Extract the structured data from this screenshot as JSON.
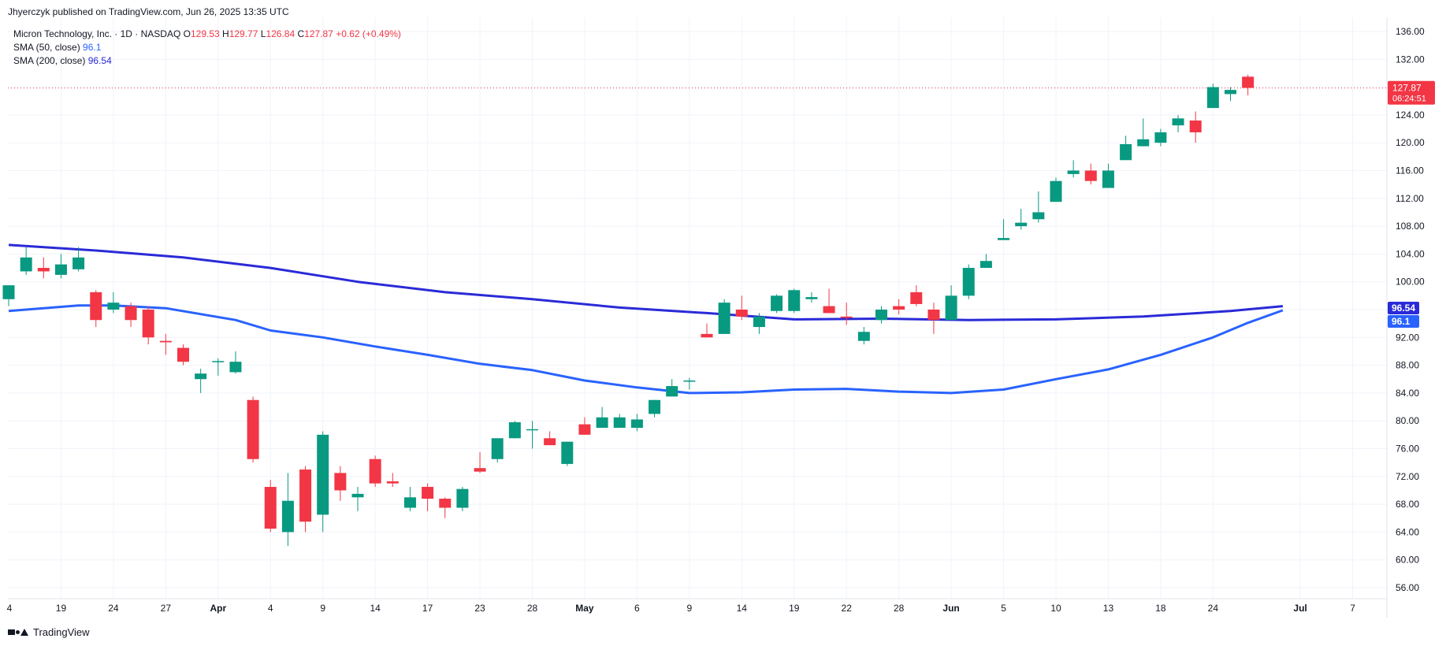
{
  "header": {
    "publisher": "Jhyerczyk published on TradingView.com, Jun 26, 2025 13:35 UTC"
  },
  "legend": {
    "symbol": "Micron Technology, Inc. · 1D · NASDAQ",
    "open_label": "O",
    "open": "129.53",
    "high_label": "H",
    "high": "129.77",
    "low_label": "L",
    "low": "126.84",
    "close_label": "C",
    "close": "127.87",
    "change": "+0.62 (+0.49%)",
    "sma50_label": "SMA (50, close)",
    "sma50_value": "96.1",
    "sma200_label": "SMA (200, close)",
    "sma200_value": "96.54"
  },
  "price_tag": {
    "price": "127.87",
    "countdown": "06:24:51"
  },
  "footer": {
    "brand": "TradingView"
  },
  "colors": {
    "up": "#089981",
    "down": "#f23645",
    "sma50": "#2962ff",
    "sma200": "#2a2ad8",
    "grid": "#f0f3fa"
  },
  "chart_data": {
    "type": "candlestick",
    "yticks": [
      56,
      60,
      64,
      68,
      72,
      76,
      80,
      84,
      88,
      92,
      96,
      100,
      104,
      108,
      112,
      116,
      120,
      124,
      128,
      132,
      136
    ],
    "ylim": [
      54,
      138
    ],
    "xlabels": [
      {
        "i": -7,
        "label": "4"
      },
      {
        "i": 3,
        "label": "19"
      },
      {
        "i": 6,
        "label": "24"
      },
      {
        "i": 9,
        "label": "27"
      },
      {
        "i": 12,
        "label": "Apr"
      },
      {
        "i": 15,
        "label": "4"
      },
      {
        "i": 18,
        "label": "9"
      },
      {
        "i": 21,
        "label": "14"
      },
      {
        "i": 24,
        "label": "17"
      },
      {
        "i": 27,
        "label": "23"
      },
      {
        "i": 30,
        "label": "28"
      },
      {
        "i": 33,
        "label": "May"
      },
      {
        "i": 36,
        "label": "6"
      },
      {
        "i": 39,
        "label": "9"
      },
      {
        "i": 42,
        "label": "14"
      },
      {
        "i": 45,
        "label": "19"
      },
      {
        "i": 48,
        "label": "22"
      },
      {
        "i": 51,
        "label": "28"
      },
      {
        "i": 54,
        "label": "Jun"
      },
      {
        "i": 57,
        "label": "5"
      },
      {
        "i": 60,
        "label": "10"
      },
      {
        "i": 63,
        "label": "13"
      },
      {
        "i": 66,
        "label": "18"
      },
      {
        "i": 69,
        "label": "24"
      },
      {
        "i": 74,
        "label": "Jul"
      },
      {
        "i": 77,
        "label": "7"
      }
    ],
    "candles": [
      [
        97.5,
        99.5,
        96.5,
        99.5
      ],
      [
        101.5,
        105.0,
        101.0,
        103.5
      ],
      [
        102.0,
        103.5,
        100.5,
        101.5
      ],
      [
        101.0,
        104.0,
        100.5,
        102.5
      ],
      [
        101.8,
        105.0,
        101.5,
        103.5
      ],
      [
        98.5,
        98.8,
        93.5,
        94.5
      ],
      [
        96.0,
        98.5,
        95.5,
        97.0
      ],
      [
        96.5,
        97.0,
        93.5,
        94.5
      ],
      [
        96.0,
        96.5,
        91.0,
        92.0
      ],
      [
        91.5,
        92.5,
        89.5,
        91.3
      ],
      [
        90.5,
        91.0,
        88.0,
        88.5
      ],
      [
        86.0,
        87.5,
        84.0,
        86.8
      ],
      [
        88.5,
        89.0,
        86.5,
        88.6
      ],
      [
        87.0,
        90.0,
        86.8,
        88.5
      ],
      [
        83.0,
        83.5,
        74.0,
        74.5
      ],
      [
        70.5,
        71.5,
        64.0,
        64.5
      ],
      [
        64.0,
        72.5,
        62.0,
        68.5
      ],
      [
        73.0,
        73.5,
        64.0,
        65.5
      ],
      [
        66.5,
        78.5,
        64.0,
        78.0
      ],
      [
        72.5,
        73.5,
        68.5,
        70.0
      ],
      [
        69.0,
        70.5,
        67.0,
        69.5
      ],
      [
        74.5,
        75.0,
        70.5,
        71.0
      ],
      [
        71.3,
        72.5,
        70.5,
        71.0
      ],
      [
        67.5,
        70.5,
        67.0,
        69.0
      ],
      [
        70.5,
        71.0,
        67.0,
        68.8
      ],
      [
        68.8,
        69.0,
        66.0,
        67.5
      ],
      [
        67.5,
        70.5,
        67.0,
        70.2
      ],
      [
        73.2,
        75.5,
        72.5,
        72.7
      ],
      [
        74.5,
        77.5,
        74.0,
        77.5
      ],
      [
        77.5,
        80.0,
        77.5,
        79.8
      ],
      [
        78.8,
        80.0,
        76.0,
        78.8
      ],
      [
        77.5,
        78.5,
        76.5,
        76.5
      ],
      [
        73.8,
        77.0,
        73.5,
        77.0
      ],
      [
        79.5,
        80.5,
        78.0,
        78.0
      ],
      [
        79.0,
        82.0,
        79.0,
        80.5
      ],
      [
        79.0,
        81.0,
        79.0,
        80.5
      ],
      [
        79.0,
        81.0,
        78.5,
        80.2
      ],
      [
        81.0,
        83.0,
        80.5,
        83.0
      ],
      [
        83.5,
        86.0,
        83.5,
        85.0
      ],
      [
        85.8,
        86.2,
        84.5,
        85.8
      ],
      [
        92.5,
        94.0,
        92.5,
        92.0
      ],
      [
        92.5,
        97.5,
        92.5,
        97.0
      ],
      [
        96.0,
        98.0,
        94.5,
        95.0
      ],
      [
        93.5,
        95.5,
        92.5,
        95.0
      ],
      [
        95.8,
        98.2,
        95.5,
        98.0
      ],
      [
        95.8,
        99.0,
        95.5,
        98.8
      ],
      [
        97.5,
        98.5,
        97.0,
        97.8
      ],
      [
        96.5,
        99.0,
        95.5,
        95.5
      ],
      [
        95.0,
        97.0,
        93.8,
        94.8
      ],
      [
        91.5,
        93.5,
        91.0,
        92.8
      ],
      [
        94.5,
        96.5,
        94.0,
        96.0
      ],
      [
        96.5,
        97.5,
        95.3,
        96.0
      ],
      [
        98.5,
        99.5,
        96.5,
        96.8
      ],
      [
        96.0,
        97.0,
        92.5,
        94.5
      ],
      [
        94.5,
        99.5,
        94.5,
        98.0
      ],
      [
        98.0,
        102.5,
        97.5,
        102.0
      ],
      [
        102.0,
        104.0,
        102.0,
        103.0
      ],
      [
        106.0,
        109.0,
        106.0,
        106.3
      ],
      [
        108.0,
        110.5,
        107.5,
        108.5
      ],
      [
        109.0,
        113.0,
        108.5,
        110.0
      ],
      [
        111.5,
        115.0,
        111.5,
        114.5
      ],
      [
        115.5,
        117.5,
        115.0,
        116.0
      ],
      [
        116.0,
        117.0,
        114.0,
        114.5
      ],
      [
        113.5,
        117.0,
        113.5,
        116.0
      ],
      [
        117.5,
        121.0,
        117.5,
        119.8
      ],
      [
        119.5,
        123.5,
        119.5,
        120.5
      ],
      [
        120.0,
        122.0,
        119.5,
        121.5
      ],
      [
        122.5,
        124.0,
        121.5,
        123.5
      ],
      [
        123.2,
        124.5,
        120.0,
        121.5
      ],
      [
        125.0,
        128.5,
        125.0,
        128.0
      ],
      [
        127.0,
        128.0,
        126.0,
        127.6
      ],
      [
        129.5,
        129.8,
        126.8,
        127.9
      ]
    ],
    "sma50": [
      [
        0,
        95.8
      ],
      [
        4,
        96.6
      ],
      [
        6,
        96.6
      ],
      [
        9,
        96.2
      ],
      [
        13,
        94.5
      ],
      [
        15,
        93.0
      ],
      [
        18,
        92.0
      ],
      [
        21,
        90.7
      ],
      [
        24,
        89.5
      ],
      [
        27,
        88.2
      ],
      [
        30,
        87.3
      ],
      [
        33,
        85.8
      ],
      [
        36,
        84.8
      ],
      [
        39,
        84.0
      ],
      [
        42,
        84.1
      ],
      [
        45,
        84.5
      ],
      [
        48,
        84.6
      ],
      [
        51,
        84.2
      ],
      [
        54,
        84.0
      ],
      [
        57,
        84.5
      ],
      [
        60,
        86.0
      ],
      [
        63,
        87.4
      ],
      [
        66,
        89.5
      ],
      [
        69,
        92.0
      ],
      [
        71,
        94.1
      ],
      [
        73,
        95.9
      ]
    ],
    "sma200": [
      [
        0,
        105.3
      ],
      [
        5,
        104.5
      ],
      [
        10,
        103.5
      ],
      [
        15,
        102.0
      ],
      [
        20,
        100.0
      ],
      [
        25,
        98.5
      ],
      [
        30,
        97.5
      ],
      [
        35,
        96.3
      ],
      [
        40,
        95.5
      ],
      [
        45,
        94.6
      ],
      [
        50,
        94.7
      ],
      [
        55,
        94.5
      ],
      [
        60,
        94.6
      ],
      [
        65,
        95.0
      ],
      [
        70,
        95.8
      ],
      [
        73,
        96.5
      ]
    ],
    "last_price": 127.87,
    "sma50_last": 96.1,
    "sma200_last": 96.54
  }
}
